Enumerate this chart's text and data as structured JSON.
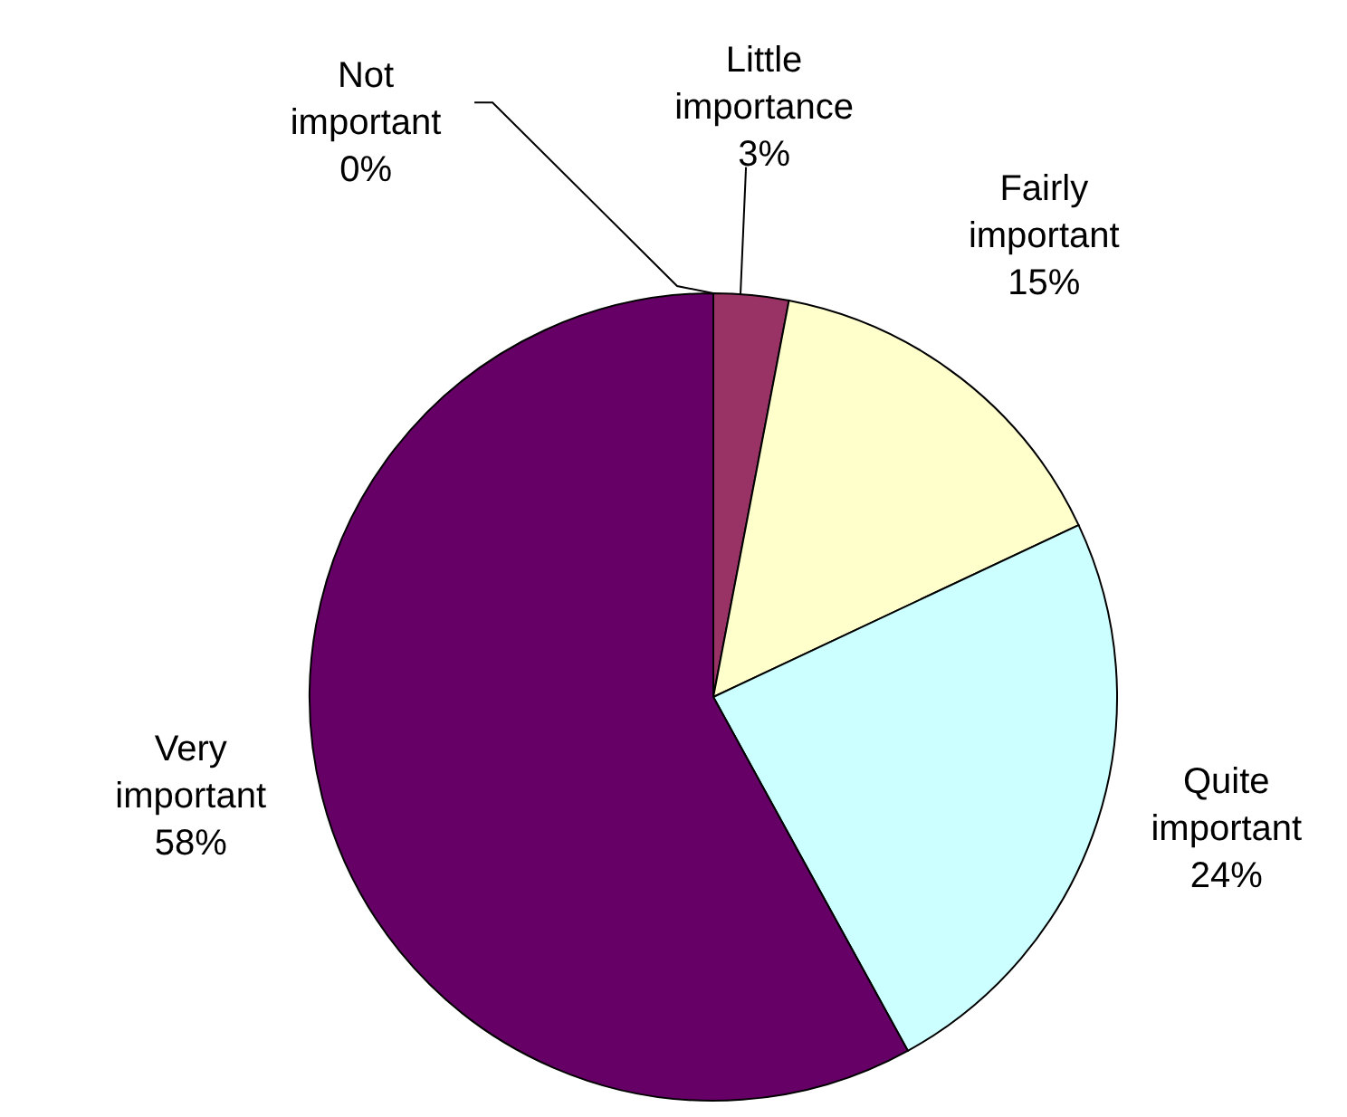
{
  "chart_data": {
    "type": "pie",
    "categories": [
      "Not important",
      "Little importance",
      "Fairly important",
      "Quite important",
      "Very important"
    ],
    "values": [
      0,
      3,
      15,
      24,
      58
    ],
    "colors": [
      "#9999ff",
      "#993366",
      "#ffffcc",
      "#ccffff",
      "#660066"
    ],
    "value_labels": [
      "0%",
      "3%",
      "15%",
      "24%",
      "58%"
    ]
  }
}
